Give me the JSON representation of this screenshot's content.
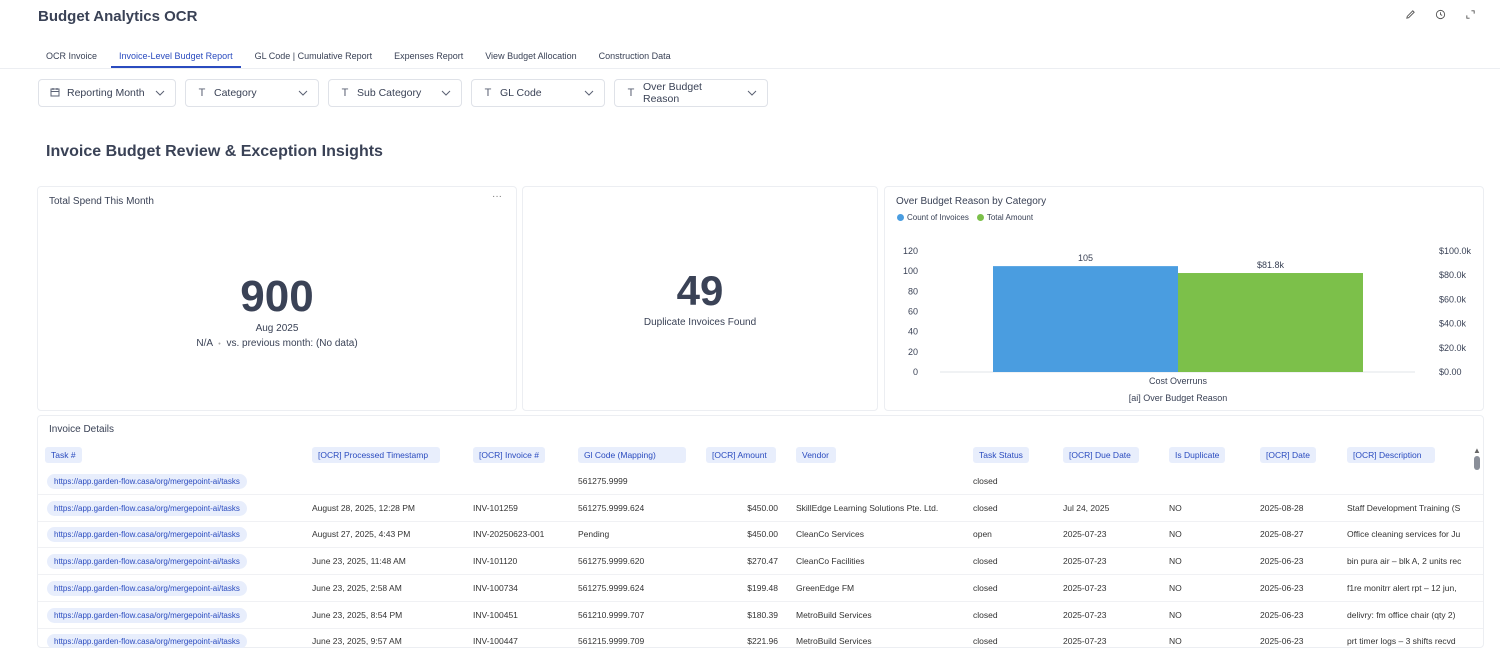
{
  "app": {
    "title": "Budget Analytics OCR",
    "icons": [
      "pencil-icon",
      "clock-icon",
      "expand-icon"
    ]
  },
  "tabs": [
    {
      "label": "OCR Invoice",
      "active": false
    },
    {
      "label": "Invoice-Level Budget Report",
      "active": true
    },
    {
      "label": "GL Code | Cumulative Report",
      "active": false
    },
    {
      "label": "Expenses Report",
      "active": false
    },
    {
      "label": "View Budget Allocation",
      "active": false
    },
    {
      "label": "Construction Data",
      "active": false
    }
  ],
  "filters": [
    {
      "label": "Reporting Month",
      "icon": "calendar-icon"
    },
    {
      "label": "Category",
      "icon": "text-type-icon"
    },
    {
      "label": "Sub Category",
      "icon": "text-type-icon"
    },
    {
      "label": "GL Code",
      "icon": "text-type-icon"
    },
    {
      "label": "Over Budget Reason",
      "icon": "text-type-icon"
    }
  ],
  "section_title": "Invoice Budget Review & Exception Insights",
  "spend_card": {
    "title": "Total Spend This Month",
    "menu": "···",
    "value": "900",
    "period": "Aug 2025",
    "comparison_na": "N/A",
    "comparison_sep": "•",
    "comparison_text": "vs. previous month: (No data)"
  },
  "duplicate_card": {
    "value": "49",
    "label": "Duplicate Invoices Found"
  },
  "chart_data": {
    "type": "bar",
    "title": "Over Budget Reason by Category",
    "categories": [
      "Cost Overruns"
    ],
    "xlabel": "[ai] Over Budget Reason",
    "series": [
      {
        "name": "Count of Invoices",
        "values": [
          105
        ],
        "axis": "left",
        "color": "#4a9de0",
        "data_labels": [
          "105"
        ]
      },
      {
        "name": "Total Amount",
        "values": [
          81800
        ],
        "axis": "right",
        "color": "#7cc04a",
        "data_labels": [
          "$81.8k"
        ]
      }
    ],
    "ylim_left": [
      0,
      120
    ],
    "yticks_left": [
      "0",
      "20",
      "40",
      "60",
      "80",
      "100",
      "120"
    ],
    "ylim_right": [
      0,
      100000
    ],
    "yticks_right": [
      "$0.00",
      "$20.0k",
      "$40.0k",
      "$60.0k",
      "$80.0k",
      "$100.0k"
    ],
    "legend": "top-left",
    "grid": false
  },
  "table": {
    "title": "Invoice Details",
    "columns": [
      "Task #",
      "[OCR] Processed Timestamp",
      "[OCR] Invoice #",
      "Gl Code (Mapping)",
      "[OCR] Amount",
      "Vendor",
      "Task Status",
      "[OCR] Due Date",
      "Is Duplicate",
      "[OCR] Date",
      "[OCR] Description"
    ],
    "rows": [
      [
        "https://app.garden-flow.casa/org/mergepoint-ai/tasks",
        "",
        "",
        "561275.9999",
        "",
        "",
        "closed",
        "",
        "",
        "",
        ""
      ],
      [
        "https://app.garden-flow.casa/org/mergepoint-ai/tasks",
        "August 28, 2025, 12:28 PM",
        "INV-101259",
        "561275.9999.624",
        "$450.00",
        "SkillEdge Learning Solutions Pte. Ltd.",
        "closed",
        "Jul 24, 2025",
        "NO",
        "2025-08-28",
        "Staff Development Training (S"
      ],
      [
        "https://app.garden-flow.casa/org/mergepoint-ai/tasks",
        "August 27, 2025, 4:43 PM",
        "INV-20250623-001",
        "Pending",
        "$450.00",
        "CleanCo Services",
        "open",
        "2025-07-23",
        "NO",
        "2025-08-27",
        "Office cleaning services for Ju"
      ],
      [
        "https://app.garden-flow.casa/org/mergepoint-ai/tasks",
        "June 23, 2025, 11:48 AM",
        "INV-101120",
        "561275.9999.620",
        "$270.47",
        "CleanCo Facilities",
        "closed",
        "2025-07-23",
        "NO",
        "2025-06-23",
        "bin pura air – blk A, 2 units rec"
      ],
      [
        "https://app.garden-flow.casa/org/mergepoint-ai/tasks",
        "June 23, 2025, 2:58 AM",
        "INV-100734",
        "561275.9999.624",
        "$199.48",
        "GreenEdge FM",
        "closed",
        "2025-07-23",
        "NO",
        "2025-06-23",
        "f1re monitrr alert rpt – 12 jun,"
      ],
      [
        "https://app.garden-flow.casa/org/mergepoint-ai/tasks",
        "June 23, 2025, 8:54 PM",
        "INV-100451",
        "561210.9999.707",
        "$180.39",
        "MetroBuild Services",
        "closed",
        "2025-07-23",
        "NO",
        "2025-06-23",
        "delivry: fm office chair (qty 2)"
      ],
      [
        "https://app.garden-flow.casa/org/mergepoint-ai/tasks",
        "June 23, 2025, 9:57 AM",
        "INV-100447",
        "561215.9999.709",
        "$221.96",
        "MetroBuild Services",
        "closed",
        "2025-07-23",
        "NO",
        "2025-06-23",
        "prt timer logs – 3 shifts recvd"
      ]
    ]
  }
}
